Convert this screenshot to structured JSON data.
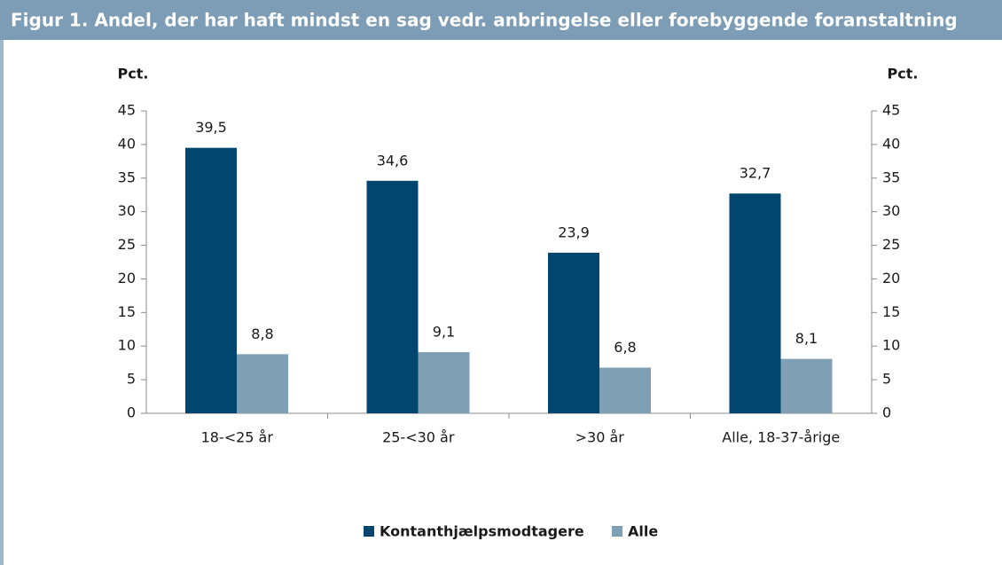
{
  "chart_data": {
    "type": "bar",
    "title": "Figur 1. Andel, der har haft mindst en sag vedr. anbringelse eller forebyggende foranstaltning",
    "y_label": "Pct.",
    "y2_label": "Pct.",
    "categories": [
      "18-<25 år",
      "25-<30 år",
      ">30 år",
      "Alle, 18-37-årige"
    ],
    "series": [
      {
        "name": "Kontanthjælpsmodtagere",
        "color": "#00466e",
        "values": [
          39.5,
          34.6,
          23.9,
          32.7
        ],
        "value_labels": [
          "39,5",
          "34,6",
          "23,9",
          "32,7"
        ]
      },
      {
        "name": "Alle",
        "color": "#7f9fb5",
        "values": [
          8.8,
          9.1,
          6.8,
          8.1
        ],
        "value_labels": [
          "8,8",
          "9,1",
          "6,8",
          "8,1"
        ]
      }
    ],
    "ylim": [
      0,
      45
    ],
    "yticks": [
      0,
      5,
      10,
      15,
      20,
      25,
      30,
      35,
      40,
      45
    ],
    "y2lim": [
      0,
      45
    ],
    "y2ticks": [
      0,
      5,
      10,
      15,
      20,
      25,
      30,
      35,
      40,
      45
    ],
    "grid": false,
    "legend": "bottom"
  }
}
